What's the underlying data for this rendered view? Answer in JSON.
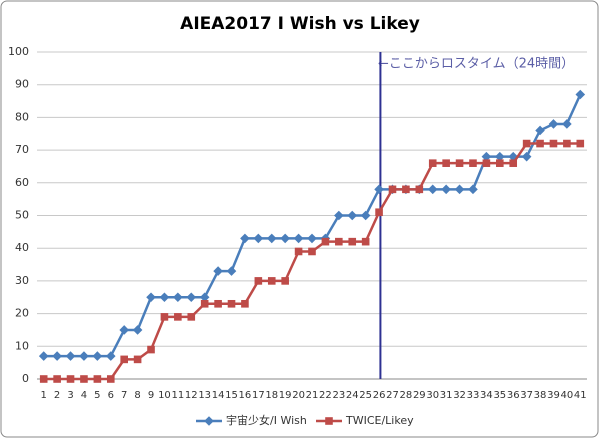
{
  "chart_data": {
    "type": "line",
    "title": "AIEA2017 I Wish vs Likey",
    "annotation": "←ここからロスタイム（24時間）",
    "categories": [
      "1",
      "2",
      "3",
      "4",
      "5",
      "6",
      "7",
      "8",
      "9",
      "10",
      "11",
      "12",
      "13",
      "14",
      "15",
      "16",
      "17",
      "18",
      "19",
      "20",
      "21",
      "22",
      "23",
      "24",
      "25",
      "26",
      "27",
      "28",
      "29",
      "30",
      "31",
      "32",
      "33",
      "34",
      "35",
      "36",
      "37",
      "38",
      "39",
      "40",
      "41"
    ],
    "series": [
      {
        "name": "宇宙少女/I Wish",
        "color": "#4a7ebb",
        "marker": "diamond",
        "values": [
          7,
          7,
          7,
          7,
          7,
          7,
          15,
          15,
          25,
          25,
          25,
          25,
          25,
          33,
          33,
          43,
          43,
          43,
          43,
          43,
          43,
          43,
          50,
          50,
          50,
          58,
          58,
          58,
          58,
          58,
          58,
          58,
          58,
          68,
          68,
          68,
          68,
          76,
          78,
          78,
          87
        ]
      },
      {
        "name": "TWICE/Likey",
        "color": "#be4b48",
        "marker": "square",
        "values": [
          0,
          0,
          0,
          0,
          0,
          0,
          6,
          6,
          9,
          19,
          19,
          19,
          23,
          23,
          23,
          23,
          30,
          30,
          30,
          39,
          39,
          42,
          42,
          42,
          42,
          51,
          58,
          58,
          58,
          66,
          66,
          66,
          66,
          66,
          66,
          66,
          72,
          72,
          72,
          72,
          72
        ]
      }
    ],
    "ylim": [
      0,
      100
    ],
    "yticks": [
      0,
      10,
      20,
      30,
      40,
      50,
      60,
      70,
      80,
      90,
      100
    ],
    "grid": true,
    "legend": "bottom"
  }
}
